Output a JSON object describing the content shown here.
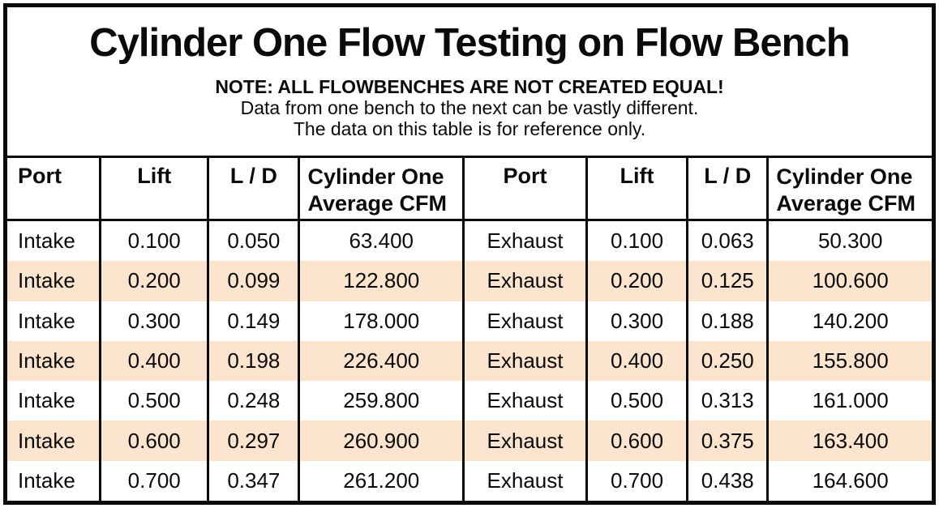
{
  "title": "Cylinder One Flow Testing on Flow Bench",
  "notes": {
    "line1": "NOTE: ALL FLOWBENCHES ARE NOT CREATED EQUAL!",
    "line2": "Data from one bench to the next can be vastly different.",
    "line3": "The data on this table is for reference only."
  },
  "headers": {
    "port1": "Port",
    "lift1": "Lift",
    "ld1": "L / D",
    "cfm1_line1": "Cylinder One",
    "cfm1_line2": "Average CFM",
    "port2": "Port",
    "lift2": "Lift",
    "ld2": "L / D",
    "cfm2_line1": "Cylinder One",
    "cfm2_line2": "Average CFM"
  },
  "chart_data": {
    "type": "table",
    "title": "Cylinder One Flow Testing on Flow Bench",
    "columns": [
      "Port",
      "Lift",
      "L / D",
      "Cylinder One Average CFM",
      "Port",
      "Lift",
      "L / D",
      "Cylinder One Average CFM"
    ],
    "rows": [
      [
        "Intake",
        "0.100",
        "0.050",
        "63.400",
        "Exhaust",
        "0.100",
        "0.063",
        "50.300"
      ],
      [
        "Intake",
        "0.200",
        "0.099",
        "122.800",
        "Exhaust",
        "0.200",
        "0.125",
        "100.600"
      ],
      [
        "Intake",
        "0.300",
        "0.149",
        "178.000",
        "Exhaust",
        "0.300",
        "0.188",
        "140.200"
      ],
      [
        "Intake",
        "0.400",
        "0.198",
        "226.400",
        "Exhaust",
        "0.400",
        "0.250",
        "155.800"
      ],
      [
        "Intake",
        "0.500",
        "0.248",
        "259.800",
        "Exhaust",
        "0.500",
        "0.313",
        "161.000"
      ],
      [
        "Intake",
        "0.600",
        "0.297",
        "260.900",
        "Exhaust",
        "0.600",
        "0.375",
        "163.400"
      ],
      [
        "Intake",
        "0.700",
        "0.347",
        "261.200",
        "Exhaust",
        "0.700",
        "0.438",
        "164.600"
      ]
    ],
    "layout": {
      "striped_rows": [
        2,
        4,
        6
      ],
      "grid": "vertical-lines-only"
    }
  },
  "colors": {
    "row_shade": "#FCE4CE",
    "border": "#0A0A0A",
    "text": "#0A0A0A",
    "background": "#FFFFFF"
  }
}
